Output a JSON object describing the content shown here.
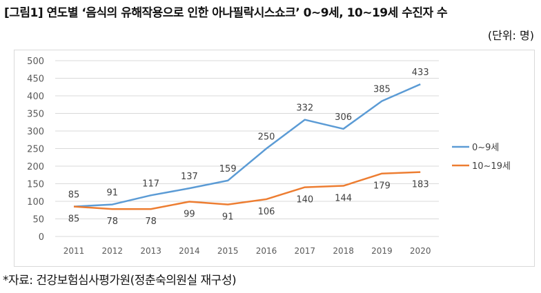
{
  "title": "[그림1] 연도별 ‘음식의 유해작용으로 인한 아나필락시스쇼크’ 0~9세, 10~19세 수진자 수",
  "unit": "(단위: 명)",
  "source": "*자료: 건강보험심사평가원(정춘숙의원실 재구성)",
  "chart_data": {
    "type": "line",
    "categories": [
      "2011",
      "2012",
      "2013",
      "2014",
      "2015",
      "2016",
      "2017",
      "2018",
      "2019",
      "2020"
    ],
    "ylim": [
      0,
      500
    ],
    "yticks": [
      0,
      50,
      100,
      150,
      200,
      250,
      300,
      350,
      400,
      450,
      500
    ],
    "grid": true,
    "legend_position": "right",
    "series": [
      {
        "name": "0~9세",
        "color": "#5b9bd5",
        "values": [
          85,
          91,
          117,
          137,
          159,
          250,
          332,
          306,
          385,
          433
        ],
        "label_position": "above"
      },
      {
        "name": "10~19세",
        "color": "#ed7d31",
        "values": [
          85,
          78,
          78,
          99,
          91,
          106,
          140,
          144,
          179,
          183
        ],
        "label_position": "below"
      }
    ]
  }
}
